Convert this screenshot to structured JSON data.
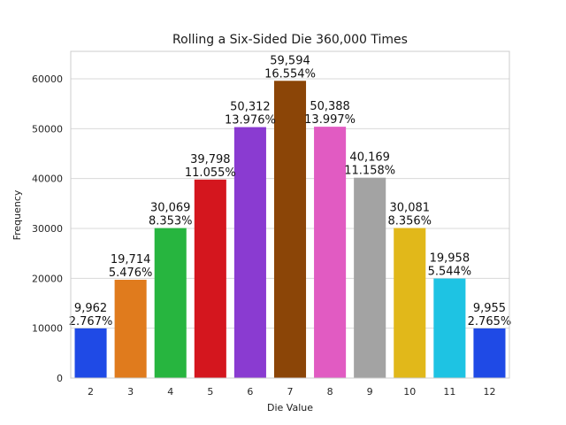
{
  "chart_data": {
    "type": "bar",
    "title": "Rolling a Six-Sided Die 360,000 Times",
    "xlabel": "Die Value",
    "ylabel": "Frequency",
    "ylim": [
      0,
      65500
    ],
    "yticks": [
      0,
      10000,
      20000,
      30000,
      40000,
      50000,
      60000
    ],
    "grid": "horizontal",
    "categories": [
      "2",
      "3",
      "4",
      "5",
      "6",
      "7",
      "8",
      "9",
      "10",
      "11",
      "12"
    ],
    "values": [
      9962,
      19714,
      30069,
      39798,
      50312,
      59594,
      50388,
      40169,
      30081,
      19958,
      9955
    ],
    "value_labels": [
      "9,962",
      "19,714",
      "30,069",
      "39,798",
      "50,312",
      "59,594",
      "50,388",
      "40,169",
      "30,081",
      "19,958",
      "9,955"
    ],
    "percent_labels": [
      "2.767%",
      "5.476%",
      "8.353%",
      "11.055%",
      "13.976%",
      "16.554%",
      "13.997%",
      "11.158%",
      "8.356%",
      "5.544%",
      "2.765%"
    ],
    "colors": [
      "#1f4ae6",
      "#e07b1d",
      "#27b53f",
      "#d4161e",
      "#8a3bd1",
      "#8b4507",
      "#e15bc2",
      "#a3a3a3",
      "#e1b81a",
      "#1ec3e3",
      "#1f4ae6"
    ]
  }
}
